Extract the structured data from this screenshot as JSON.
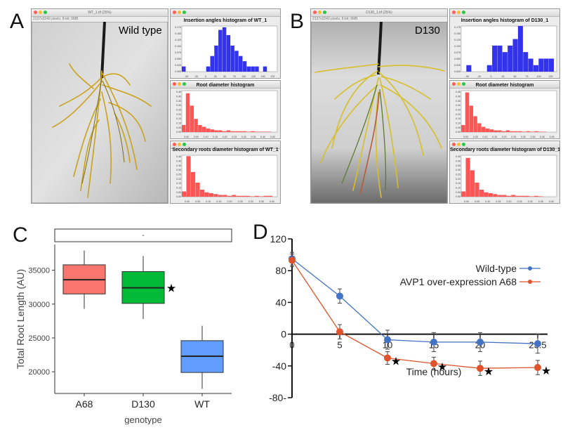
{
  "panels": {
    "A": {
      "letter": "A",
      "window_title": "WT_1.tif (25%)",
      "window_info": "2137x3240 pixels; 8-bit; 6MB",
      "plant_label": "Wild type",
      "histograms": [
        {
          "title": "Insertion angles histogram of WT_1",
          "color": "#3333ee",
          "x_ticks": [
            "-50",
            "-25",
            "0",
            "25",
            "50",
            "75",
            "100",
            "125",
            "150",
            "175"
          ],
          "y_ticks": [
            "0.000",
            "0.025",
            "0.050",
            "0.075",
            "0.100",
            "0.125",
            "0.150",
            "0.175"
          ]
        },
        {
          "title": "Root diameter histogram",
          "color": "#ff5555",
          "x_ticks": [
            "0.00",
            "0.05",
            "0.10",
            "0.15",
            "0.20",
            "0.25",
            "0.30",
            "0.35",
            "0.40",
            "0.45"
          ],
          "y_ticks": [
            "0.00",
            "0.05",
            "0.10",
            "0.15",
            "0.20",
            "0.25",
            "0.30",
            "0.35",
            "0.40",
            "0.45"
          ]
        },
        {
          "title": "Secondary roots diameter histogram of WT_1",
          "color": "#ff5555",
          "x_ticks": [
            "0.00",
            "0.05",
            "0.10",
            "0.15",
            "0.20",
            "0.25",
            "0.30",
            "0.35",
            "0.40"
          ],
          "y_ticks": [
            "0.00",
            "0.05",
            "0.10",
            "0.15",
            "0.20",
            "0.25",
            "0.30",
            "0.35",
            "0.40",
            "0.45"
          ]
        }
      ]
    },
    "B": {
      "letter": "B",
      "window_title": "D130_1.tif (25%)",
      "window_info": "2137x3240 pixels; 8-bit; 6MB",
      "plant_label": "D130",
      "histograms": [
        {
          "title": "Insertion angles histogram of D130_1",
          "color": "#3333ee",
          "x_ticks": [
            "-50",
            "-25",
            "0",
            "25",
            "50",
            "75",
            "100",
            "125"
          ],
          "y_ticks": [
            "0.000",
            "0.025",
            "0.050",
            "0.075",
            "0.100",
            "0.125",
            "0.150",
            "0.175"
          ]
        },
        {
          "title": "Root diameter histogram",
          "color": "#ff5555",
          "x_ticks": [
            "0.00",
            "0.05",
            "0.10",
            "0.15",
            "0.20",
            "0.25",
            "0.30",
            "0.35",
            "0.40",
            "0.45"
          ],
          "y_ticks": [
            "0.00",
            "0.05",
            "0.10",
            "0.15",
            "0.20",
            "0.25",
            "0.30",
            "0.35",
            "0.40",
            "0.45"
          ]
        },
        {
          "title": "Secondary roots diameter histogram of D130_1",
          "color": "#ff5555",
          "x_ticks": [
            "0.00",
            "0.05",
            "0.10",
            "0.15",
            "0.20",
            "0.25",
            "0.30",
            "0.35",
            "0.40"
          ],
          "y_ticks": [
            "0.00",
            "0.05",
            "0.10",
            "0.15",
            "0.20",
            "0.25",
            "0.30",
            "0.35",
            "0.40",
            "0.45"
          ]
        }
      ]
    },
    "C": {
      "letter": "C"
    },
    "D": {
      "letter": "D"
    }
  },
  "chart_data": [
    {
      "type": "bar",
      "panel": "A",
      "title": "Insertion angles histogram of WT_1",
      "bins": [
        -60,
        -40,
        -20,
        0,
        10,
        20,
        30,
        40,
        50,
        60,
        70,
        80,
        90,
        100,
        110,
        120,
        130,
        140
      ],
      "values": [
        0.02,
        0,
        0,
        0.02,
        0.06,
        0.1,
        0.16,
        0.17,
        0.14,
        0.1,
        0.08,
        0.06,
        0.04,
        0.02,
        0.02,
        0.02,
        0,
        0.02
      ],
      "xlim": [
        -60,
        175
      ],
      "ylim": [
        0,
        0.175
      ]
    },
    {
      "type": "bar",
      "panel": "A",
      "title": "Root diameter histogram",
      "bins": [
        0.0,
        0.02,
        0.04,
        0.06,
        0.08,
        0.1,
        0.12,
        0.14,
        0.16,
        0.18,
        0.2,
        0.22,
        0.24,
        0.26,
        0.28,
        0.3,
        0.32,
        0.34,
        0.36,
        0.38,
        0.4,
        0.42
      ],
      "values": [
        0.08,
        0.44,
        0.3,
        0.15,
        0.08,
        0.06,
        0.04,
        0.03,
        0.02,
        0.02,
        0.01,
        0.02,
        0.01,
        0.01,
        0.01,
        0.01,
        0.005,
        0.01,
        0.005,
        0.005,
        0.005,
        0.005
      ],
      "xlim": [
        0,
        0.47
      ],
      "ylim": [
        0,
        0.47
      ]
    },
    {
      "type": "bar",
      "panel": "A",
      "title": "Secondary roots diameter histogram of WT_1",
      "bins": [
        0.0,
        0.02,
        0.04,
        0.06,
        0.08,
        0.1,
        0.12,
        0.14,
        0.16,
        0.18,
        0.2,
        0.22,
        0.24,
        0.26,
        0.28,
        0.3,
        0.32,
        0.34,
        0.36,
        0.38
      ],
      "values": [
        0.06,
        0.46,
        0.28,
        0.16,
        0.08,
        0.05,
        0.04,
        0.03,
        0.02,
        0.02,
        0.01,
        0.02,
        0.01,
        0.01,
        0.01,
        0.005,
        0.01,
        0.005,
        0.01,
        0.01
      ],
      "xlim": [
        0,
        0.42
      ],
      "ylim": [
        0,
        0.47
      ]
    },
    {
      "type": "bar",
      "panel": "B",
      "title": "Insertion angles histogram of D130_1",
      "bins": [
        -40,
        0,
        10,
        20,
        30,
        40,
        50,
        60,
        70,
        80,
        90,
        100,
        110,
        120
      ],
      "values": [
        0.025,
        0.025,
        0.1,
        0.1,
        0.075,
        0.1,
        0.125,
        0.175,
        0.075,
        0.05,
        0.025,
        0.05,
        0.05,
        0.05
      ],
      "xlim": [
        -50,
        135
      ],
      "ylim": [
        0,
        0.175
      ]
    },
    {
      "type": "bar",
      "panel": "B",
      "title": "Root diameter histogram",
      "bins": [
        0.0,
        0.02,
        0.04,
        0.06,
        0.08,
        0.1,
        0.12,
        0.14,
        0.16,
        0.18,
        0.2,
        0.22,
        0.24,
        0.26,
        0.28,
        0.3,
        0.32,
        0.34,
        0.36,
        0.38,
        0.4
      ],
      "values": [
        0.08,
        0.45,
        0.3,
        0.18,
        0.1,
        0.06,
        0.04,
        0.03,
        0.02,
        0.02,
        0.01,
        0.02,
        0.01,
        0.01,
        0.01,
        0.005,
        0.01,
        0.005,
        0.01,
        0.005,
        0.005
      ],
      "xlim": [
        0,
        0.47
      ],
      "ylim": [
        0,
        0.47
      ]
    },
    {
      "type": "bar",
      "panel": "B",
      "title": "Secondary roots diameter histogram of D130_1",
      "bins": [
        0.0,
        0.02,
        0.04,
        0.06,
        0.08,
        0.1,
        0.12,
        0.14,
        0.16,
        0.18,
        0.2,
        0.22,
        0.24,
        0.26,
        0.28,
        0.3,
        0.32,
        0.34
      ],
      "values": [
        0.06,
        0.44,
        0.3,
        0.16,
        0.08,
        0.05,
        0.04,
        0.03,
        0.02,
        0.02,
        0.01,
        0.02,
        0.01,
        0.01,
        0.01,
        0.005,
        0.01,
        0.005
      ],
      "xlim": [
        0,
        0.42
      ],
      "ylim": [
        0,
        0.47
      ]
    },
    {
      "type": "box",
      "panel": "C",
      "categories": [
        "A68",
        "D130",
        "WT"
      ],
      "boxes": [
        {
          "q1": 31500,
          "median": 33600,
          "q3": 35800,
          "whisker_low": 29300,
          "whisker_high": 37900,
          "color": "#f8766d"
        },
        {
          "q1": 30100,
          "median": 32400,
          "q3": 34800,
          "whisker_low": 27800,
          "whisker_high": 37100,
          "color": "#00ba38"
        },
        {
          "q1": 19900,
          "median": 22300,
          "q3": 24600,
          "whisker_low": 17500,
          "whisker_high": 26800,
          "color": "#619cff"
        }
      ],
      "y_ticks": [
        20000,
        25000,
        30000,
        35000
      ],
      "ylim": [
        16800,
        38800
      ],
      "ylabel": "Total Root Length (AU)",
      "xlabel": "genotype",
      "strip_text": "-",
      "significance_marker": "★",
      "marked_category": "D130"
    },
    {
      "type": "line",
      "panel": "D",
      "x": [
        0,
        5,
        10,
        15,
        20,
        23.5
      ],
      "series": [
        {
          "name": "Wild-type",
          "color": "#4472c4",
          "values": [
            95,
            48,
            -7,
            -10,
            -10,
            -12
          ],
          "errors": [
            8,
            9,
            12,
            12,
            12,
            12
          ]
        },
        {
          "name": "AVP1 over-expression A68",
          "color": "#e0522b",
          "values": [
            93,
            3,
            -30,
            -37,
            -43,
            -42
          ],
          "errors": [
            8,
            9,
            8,
            8,
            9,
            9
          ]
        }
      ],
      "x_ticks": [
        "0",
        "5",
        "10",
        "15",
        "20",
        "23.5"
      ],
      "y_ticks": [
        "120",
        "80",
        "40",
        "0",
        "-40",
        "-80-"
      ],
      "ylim": [
        -80,
        120
      ],
      "xlabel": "Time (hours)",
      "significance_marker": "★",
      "marked_x": [
        10,
        15,
        20,
        23.5
      ],
      "legend_position": "top-right"
    }
  ]
}
